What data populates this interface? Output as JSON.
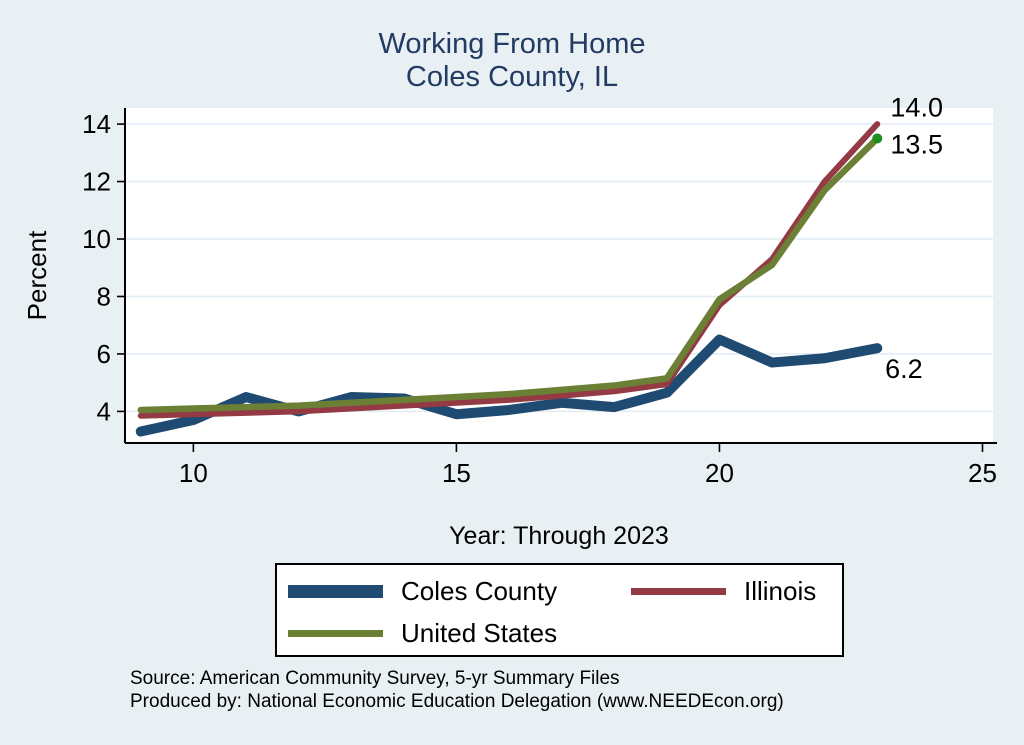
{
  "title": {
    "line1": "Working From Home",
    "line2": "Coles County, IL"
  },
  "chart_data": {
    "type": "line",
    "title": "Working From Home",
    "subtitle": "Coles County, IL",
    "xlabel": "Year: Through 2023",
    "ylabel": "Percent",
    "x": [
      9,
      10,
      11,
      12,
      13,
      14,
      15,
      16,
      17,
      18,
      19,
      20,
      21,
      22,
      23
    ],
    "xticks": [
      10,
      15,
      20,
      25
    ],
    "yticks": [
      4,
      6,
      8,
      10,
      12,
      14
    ],
    "xlim": [
      8.7,
      25.2
    ],
    "ylim": [
      2.9,
      14.56
    ],
    "grid": "horizontal-only",
    "grid_color": "#e0ebf2",
    "plot_background": "#ffffff",
    "page_background": "#e8f0f4",
    "title_color": "#233a63",
    "legend_position": "bottom",
    "series": [
      {
        "name": "Coles County",
        "color": "#1f4a72",
        "values": [
          3.3,
          3.7,
          4.5,
          4.0,
          4.5,
          4.45,
          3.9,
          4.05,
          4.3,
          4.15,
          4.65,
          6.5,
          5.7,
          5.85,
          6.2
        ],
        "end_label": "6.2"
      },
      {
        "name": "Illinois",
        "color": "#943a44",
        "values": [
          3.85,
          3.9,
          3.95,
          4.0,
          4.1,
          4.2,
          4.3,
          4.4,
          4.55,
          4.7,
          4.95,
          7.7,
          9.3,
          12.0,
          14.0
        ],
        "end_label": "14.0"
      },
      {
        "name": "United States",
        "color": "#6b8035",
        "values": [
          4.05,
          4.1,
          4.15,
          4.2,
          4.3,
          4.4,
          4.5,
          4.6,
          4.75,
          4.9,
          5.15,
          7.9,
          9.1,
          11.7,
          13.5
        ],
        "end_label": "13.5",
        "end_marker_color": "#1e8e1e"
      }
    ],
    "annotations": [
      {
        "text": "14.0",
        "year": 23.25,
        "value": 14.6
      },
      {
        "text": "13.5",
        "year": 23.25,
        "value": 13.3
      },
      {
        "text": "6.2",
        "year": 23.15,
        "value": 5.5
      }
    ]
  },
  "footer": {
    "source": "Source: American Community Survey, 5-yr Summary Files",
    "produced_by": "Produced by: National Economic Education Delegation (www.NEEDEcon.org)"
  }
}
